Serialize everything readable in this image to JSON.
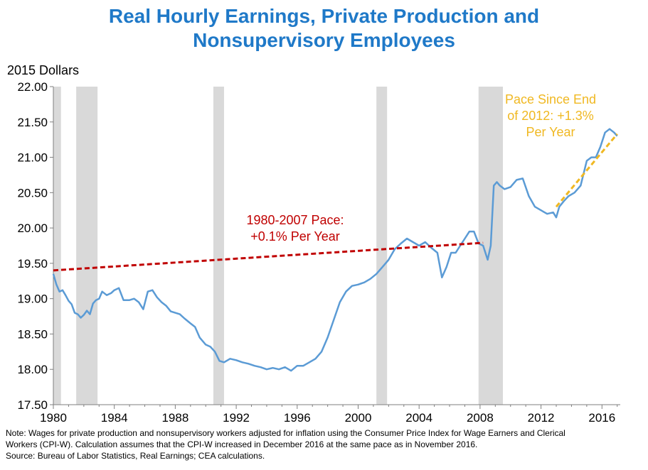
{
  "title_line1": "Real Hourly Earnings, Private Production and",
  "title_line2": "Nonsupervisory Employees",
  "notes": {
    "line1": "Note: Wages for private production and nonsupervisory workers adjusted for inflation using the Consumer Price Index for Wage Earners and Clerical",
    "line2": "Workers (CPI-W). Calculation assumes that the CPI-W increased in December 2016 at the same pace as in November 2016.",
    "line3": "Source: Bureau of Labor Statistics, Real Earnings; CEA calculations."
  },
  "chart_data": {
    "type": "line",
    "title": "Real Hourly Earnings, Private Production and Nonsupervisory Employees",
    "ylabel": "2015 Dollars",
    "xlabel": "",
    "xlim": [
      1980,
      2017.2
    ],
    "ylim": [
      17.5,
      22.0
    ],
    "y_ticks": [
      "17.50",
      "18.00",
      "18.50",
      "19.00",
      "19.50",
      "20.00",
      "20.50",
      "21.00",
      "21.50",
      "22.00"
    ],
    "x_ticks": [
      "1980",
      "1984",
      "1988",
      "1992",
      "1996",
      "2000",
      "2004",
      "2008",
      "2012",
      "2016"
    ],
    "recessions": [
      {
        "start": 1980.0,
        "end": 1980.5
      },
      {
        "start": 1981.5,
        "end": 1982.9
      },
      {
        "start": 1990.5,
        "end": 1991.2
      },
      {
        "start": 2001.2,
        "end": 2001.9
      },
      {
        "start": 2007.9,
        "end": 2009.5
      }
    ],
    "series": [
      {
        "name": "Real hourly earnings",
        "color": "#5b9bd5",
        "x": [
          1980.0,
          1980.2,
          1980.4,
          1980.6,
          1980.8,
          1981.0,
          1981.2,
          1981.4,
          1981.6,
          1981.8,
          1982.0,
          1982.2,
          1982.4,
          1982.6,
          1982.8,
          1983.0,
          1983.2,
          1983.5,
          1983.8,
          1984.0,
          1984.3,
          1984.6,
          1985.0,
          1985.3,
          1985.6,
          1985.9,
          1986.2,
          1986.5,
          1986.8,
          1987.1,
          1987.4,
          1987.7,
          1988.0,
          1988.3,
          1988.6,
          1989.0,
          1989.3,
          1989.6,
          1990.0,
          1990.3,
          1990.6,
          1990.9,
          1991.2,
          1991.6,
          1992.0,
          1992.4,
          1992.8,
          1993.2,
          1993.6,
          1994.0,
          1994.4,
          1994.8,
          1995.2,
          1995.6,
          1996.0,
          1996.4,
          1996.8,
          1997.2,
          1997.6,
          1998.0,
          1998.4,
          1998.8,
          1999.2,
          1999.6,
          2000.0,
          2000.4,
          2000.8,
          2001.2,
          2001.6,
          2002.0,
          2002.4,
          2002.8,
          2003.2,
          2003.6,
          2004.0,
          2004.4,
          2004.8,
          2005.2,
          2005.5,
          2005.8,
          2006.1,
          2006.4,
          2006.7,
          2007.0,
          2007.3,
          2007.6,
          2007.9,
          2008.2,
          2008.5,
          2008.7,
          2008.9,
          2009.1,
          2009.3,
          2009.6,
          2010.0,
          2010.4,
          2010.8,
          2011.2,
          2011.6,
          2012.0,
          2012.4,
          2012.8,
          2013.0,
          2013.2,
          2013.5,
          2013.8,
          2014.2,
          2014.6,
          2015.0,
          2015.3,
          2015.6,
          2015.9,
          2016.2,
          2016.5,
          2016.8,
          2017.0
        ],
        "values": [
          19.35,
          19.2,
          19.1,
          19.12,
          19.05,
          18.97,
          18.92,
          18.8,
          18.78,
          18.73,
          18.77,
          18.83,
          18.78,
          18.93,
          18.98,
          19.0,
          19.1,
          19.05,
          19.08,
          19.12,
          19.15,
          18.98,
          18.98,
          19.0,
          18.95,
          18.85,
          19.1,
          19.12,
          19.02,
          18.95,
          18.9,
          18.82,
          18.8,
          18.78,
          18.72,
          18.65,
          18.6,
          18.45,
          18.35,
          18.32,
          18.25,
          18.12,
          18.1,
          18.15,
          18.13,
          18.1,
          18.08,
          18.05,
          18.03,
          18.0,
          18.02,
          18.0,
          18.03,
          17.98,
          18.05,
          18.05,
          18.1,
          18.15,
          18.25,
          18.45,
          18.7,
          18.95,
          19.1,
          19.18,
          19.2,
          19.23,
          19.28,
          19.35,
          19.45,
          19.55,
          19.7,
          19.78,
          19.85,
          19.8,
          19.75,
          19.8,
          19.72,
          19.65,
          19.3,
          19.45,
          19.65,
          19.65,
          19.75,
          19.85,
          19.95,
          19.95,
          19.78,
          19.75,
          19.55,
          19.75,
          20.6,
          20.65,
          20.6,
          20.55,
          20.58,
          20.68,
          20.7,
          20.45,
          20.3,
          20.25,
          20.2,
          20.22,
          20.15,
          20.3,
          20.38,
          20.45,
          20.5,
          20.6,
          20.95,
          21.0,
          21.0,
          21.15,
          21.35,
          21.4,
          21.35,
          21.3
        ]
      }
    ],
    "trend_lines": [
      {
        "name": "1980-2007 Pace",
        "color": "#c00000",
        "x": [
          1980,
          2008.2
        ],
        "values": [
          19.4,
          19.79
        ],
        "label": [
          "1980-2007 Pace:",
          "+0.1% Per Year"
        ]
      },
      {
        "name": "Pace Since End of 2012",
        "color": "#f0b822",
        "x": [
          2013,
          2017
        ],
        "values": [
          20.3,
          21.33
        ],
        "label": [
          "Pace Since End",
          "of 2012: +1.3%",
          "Per Year"
        ]
      }
    ]
  }
}
